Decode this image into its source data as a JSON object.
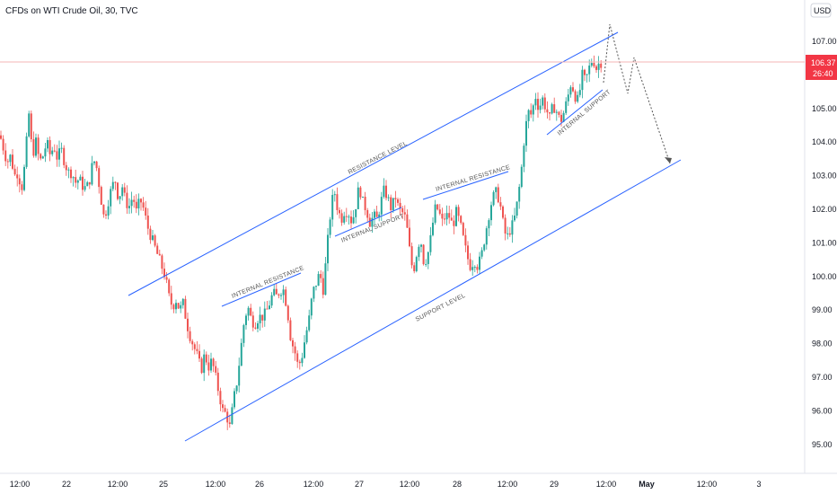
{
  "header": {
    "title": "CFDs on WTI Crude Oil, 30, TVC"
  },
  "currency_button": {
    "label": "USD"
  },
  "current_price": {
    "value": "106.37",
    "countdown": "26:40",
    "color": "#f23645"
  },
  "colors": {
    "up": "#26a69a",
    "down": "#ef5350",
    "line": "#2962ff",
    "projection": "#555555",
    "price_line": "#f5b5b5"
  },
  "icons": {
    "currency": "dollar-icon"
  },
  "chart_data": {
    "type": "candlestick",
    "title": "CFDs on WTI Crude Oil, 30, TVC",
    "ylim": [
      94.4,
      108.2
    ],
    "y_ticks": [
      "95.00",
      "96.00",
      "97.00",
      "98.00",
      "99.00",
      "100.00",
      "101.00",
      "102.00",
      "103.00",
      "104.00",
      "105.00",
      "106.00",
      "107.00"
    ],
    "x_ticks": [
      "12:00",
      "22",
      "12:00",
      "25",
      "12:00",
      "26",
      "12:00",
      "27",
      "12:00",
      "28",
      "12:00",
      "29",
      "12:00",
      "May",
      "12:00",
      "3"
    ],
    "annotations": [
      "RESISTANCE LEVEL",
      "SUPPORT LEVEL",
      "INTERNAL RESISTANCE",
      "INTERNAL SUPPORT",
      "INTERNAL RESISTANCE",
      "INTERNAL SUPPORT",
      "INTERNAL SUPPORT"
    ],
    "close_path": [
      [
        0,
        104.2
      ],
      [
        4,
        103.8
      ],
      [
        8,
        103.4
      ],
      [
        12,
        103.6
      ],
      [
        16,
        103.0
      ],
      [
        20,
        103.1
      ],
      [
        24,
        102.6
      ],
      [
        28,
        103.4
      ],
      [
        32,
        104.9
      ],
      [
        36,
        103.6
      ],
      [
        40,
        104.0
      ],
      [
        44,
        103.4
      ],
      [
        48,
        103.6
      ],
      [
        52,
        104.0
      ],
      [
        56,
        103.6
      ],
      [
        60,
        103.9
      ],
      [
        64,
        103.5
      ],
      [
        68,
        103.8
      ],
      [
        72,
        103.4
      ],
      [
        76,
        103.1
      ],
      [
        80,
        103.1
      ],
      [
        84,
        102.8
      ],
      [
        88,
        102.9
      ],
      [
        92,
        102.7
      ],
      [
        96,
        102.6
      ],
      [
        100,
        102.9
      ],
      [
        104,
        103.5
      ],
      [
        108,
        103.2
      ],
      [
        112,
        102.4
      ],
      [
        116,
        101.7
      ],
      [
        120,
        102.2
      ],
      [
        124,
        102.6
      ],
      [
        128,
        102.9
      ],
      [
        132,
        102.3
      ],
      [
        136,
        102.7
      ],
      [
        140,
        102.2
      ],
      [
        144,
        102.1
      ],
      [
        148,
        102.4
      ],
      [
        152,
        101.9
      ],
      [
        156,
        102.3
      ],
      [
        160,
        102.0
      ],
      [
        164,
        101.5
      ],
      [
        168,
        101.2
      ],
      [
        172,
        100.9
      ],
      [
        176,
        100.6
      ],
      [
        180,
        100.3
      ],
      [
        184,
        100.0
      ],
      [
        188,
        99.4
      ],
      [
        192,
        99.1
      ],
      [
        196,
        99.3
      ],
      [
        200,
        99.0
      ],
      [
        204,
        99.2
      ],
      [
        208,
        98.6
      ],
      [
        212,
        98.2
      ],
      [
        216,
        97.9
      ],
      [
        220,
        97.6
      ],
      [
        224,
        97.2
      ],
      [
        228,
        97.7
      ],
      [
        232,
        97.3
      ],
      [
        236,
        97.5
      ],
      [
        240,
        97.0
      ],
      [
        244,
        96.5
      ],
      [
        248,
        96.0
      ],
      [
        252,
        95.9
      ],
      [
        256,
        95.5
      ],
      [
        260,
        96.3
      ],
      [
        264,
        96.9
      ],
      [
        268,
        97.8
      ],
      [
        272,
        98.7
      ],
      [
        276,
        99.1
      ],
      [
        280,
        98.7
      ],
      [
        284,
        98.6
      ],
      [
        288,
        98.8
      ],
      [
        292,
        98.8
      ],
      [
        296,
        98.9
      ],
      [
        300,
        99.2
      ],
      [
        304,
        99.5
      ],
      [
        308,
        99.4
      ],
      [
        312,
        99.6
      ],
      [
        316,
        99.6
      ],
      [
        320,
        99.0
      ],
      [
        324,
        98.1
      ],
      [
        328,
        97.8
      ],
      [
        332,
        97.3
      ],
      [
        336,
        97.6
      ],
      [
        340,
        98.2
      ],
      [
        344,
        98.7
      ],
      [
        348,
        99.5
      ],
      [
        352,
        99.8
      ],
      [
        356,
        100.1
      ],
      [
        360,
        99.6
      ],
      [
        364,
        100.8
      ],
      [
        368,
        101.9
      ],
      [
        372,
        102.6
      ],
      [
        376,
        102.0
      ],
      [
        380,
        101.7
      ],
      [
        384,
        102.0
      ],
      [
        388,
        101.9
      ],
      [
        392,
        101.6
      ],
      [
        396,
        102.1
      ],
      [
        400,
        102.7
      ],
      [
        404,
        102.2
      ],
      [
        408,
        102.0
      ],
      [
        412,
        101.6
      ],
      [
        416,
        101.8
      ],
      [
        420,
        101.7
      ],
      [
        424,
        102.2
      ],
      [
        428,
        102.6
      ],
      [
        432,
        102.3
      ],
      [
        436,
        102.0
      ],
      [
        440,
        102.4
      ],
      [
        444,
        102.0
      ],
      [
        448,
        101.9
      ],
      [
        452,
        101.7
      ],
      [
        456,
        100.8
      ],
      [
        460,
        100.1
      ],
      [
        464,
        100.7
      ],
      [
        468,
        101.2
      ],
      [
        472,
        100.4
      ],
      [
        476,
        100.6
      ],
      [
        480,
        101.2
      ],
      [
        484,
        102.0
      ],
      [
        488,
        102.0
      ],
      [
        492,
        101.6
      ],
      [
        496,
        101.8
      ],
      [
        500,
        101.8
      ],
      [
        504,
        101.5
      ],
      [
        508,
        101.9
      ],
      [
        512,
        101.6
      ],
      [
        516,
        101.1
      ],
      [
        520,
        100.6
      ],
      [
        524,
        100.3
      ],
      [
        528,
        100.5
      ],
      [
        532,
        100.3
      ],
      [
        536,
        100.6
      ],
      [
        540,
        101.2
      ],
      [
        544,
        101.8
      ],
      [
        548,
        102.3
      ],
      [
        552,
        102.5
      ],
      [
        556,
        102.3
      ],
      [
        560,
        101.6
      ],
      [
        564,
        101.1
      ],
      [
        568,
        101.4
      ],
      [
        572,
        101.6
      ],
      [
        576,
        102.2
      ],
      [
        580,
        103.0
      ],
      [
        584,
        104.2
      ],
      [
        588,
        104.9
      ],
      [
        592,
        104.8
      ],
      [
        596,
        105.4
      ],
      [
        600,
        105.0
      ],
      [
        604,
        105.3
      ],
      [
        608,
        105.0
      ],
      [
        612,
        104.7
      ],
      [
        616,
        105.1
      ],
      [
        620,
        104.9
      ],
      [
        624,
        104.6
      ],
      [
        628,
        104.9
      ],
      [
        632,
        105.3
      ],
      [
        636,
        105.8
      ],
      [
        640,
        105.4
      ],
      [
        644,
        105.2
      ],
      [
        648,
        106.0
      ],
      [
        652,
        105.8
      ],
      [
        656,
        106.2
      ],
      [
        660,
        106.5
      ],
      [
        664,
        106.2
      ],
      [
        668,
        106.4
      ],
      [
        670,
        106.37
      ]
    ]
  }
}
